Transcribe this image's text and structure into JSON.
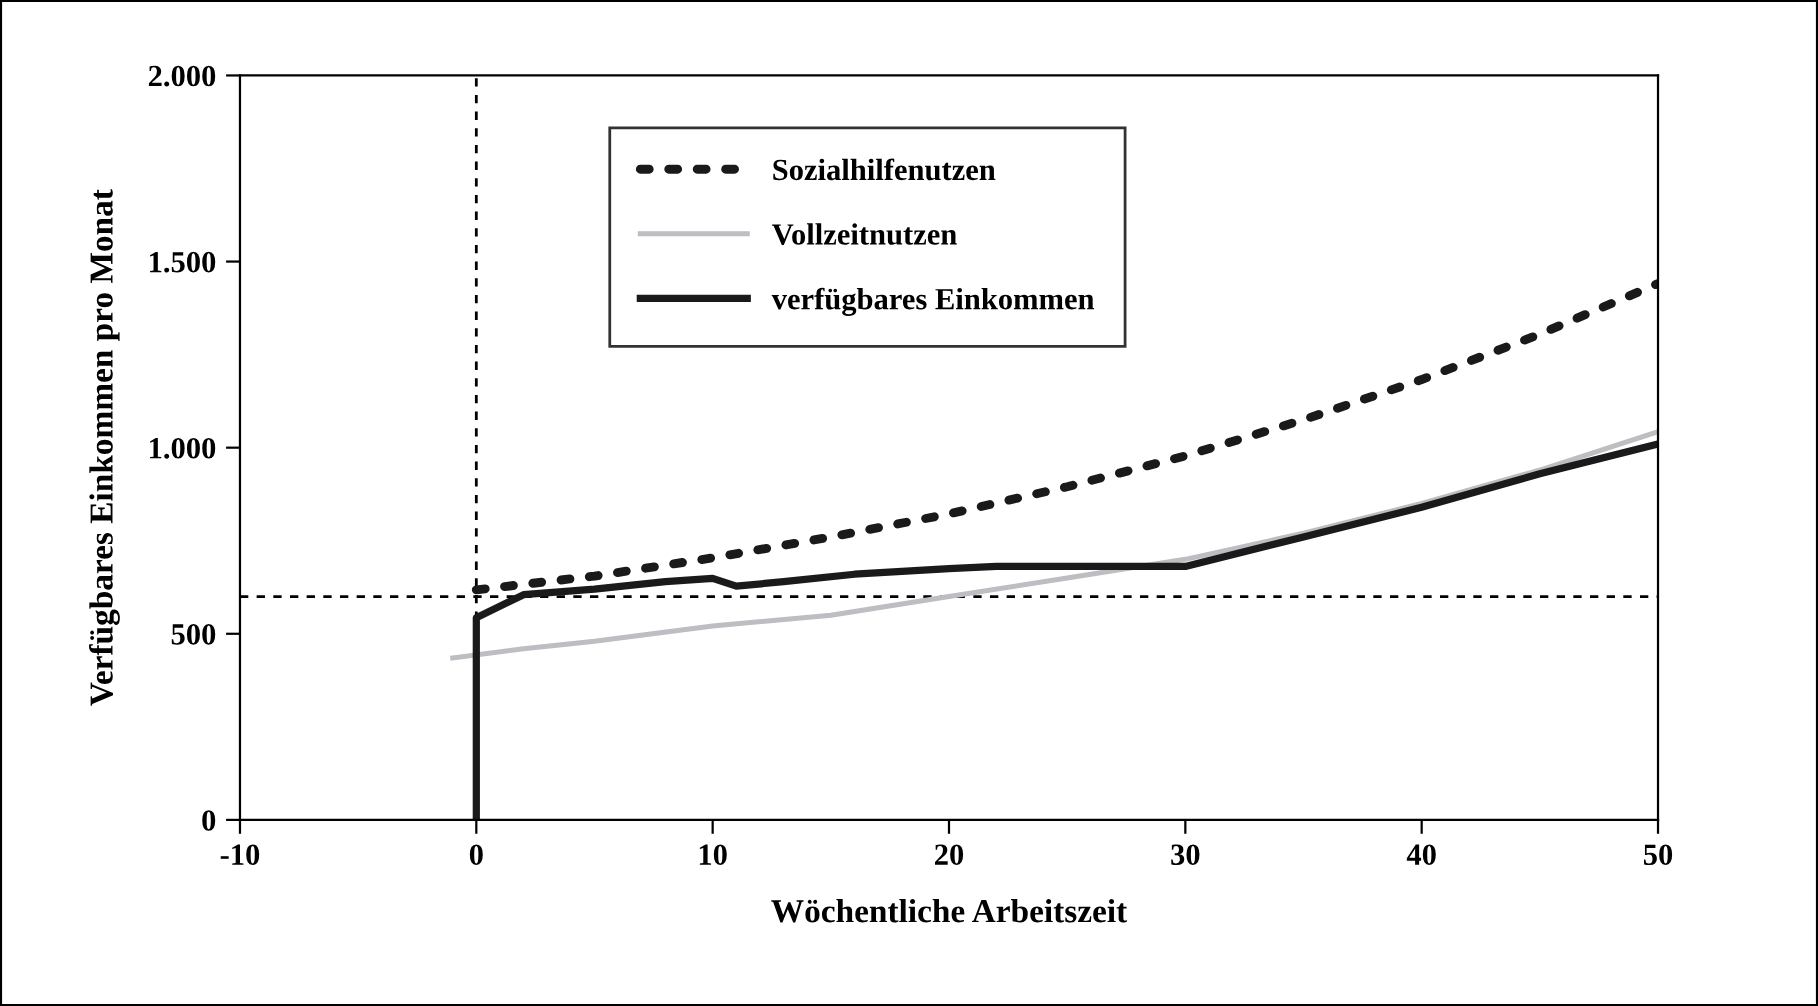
{
  "chart_data": {
    "type": "line",
    "xlabel": "Wöchentliche Arbeitszeit",
    "ylabel": "Verfügbares Einkommen pro Monat",
    "xlim": [
      -10,
      50
    ],
    "xticks": [
      -10,
      0,
      10,
      20,
      30,
      40,
      50
    ],
    "ylim": [
      0,
      2000
    ],
    "yticks": [
      0,
      {
        "value": 500,
        "label": "500"
      },
      {
        "value": 1000,
        "label": "1.000"
      },
      {
        "value": 1500,
        "label": "1.500"
      },
      {
        "value": 2000,
        "label": "2.000"
      }
    ],
    "grid": false,
    "legend": "top left",
    "series": [
      {
        "name": "Sozialhilfenutzen",
        "color": "#1a1a1a",
        "line_style": "dotted",
        "x": [
          0,
          5,
          10,
          15,
          20,
          25,
          30,
          35,
          40,
          45,
          50
        ],
        "values": [
          618,
          655,
          704,
          760,
          822,
          895,
          978,
          1075,
          1183,
          1305,
          1441
        ]
      },
      {
        "name": "Vollzeitnutzen",
        "color": "#bdbdc2",
        "line_style": "solid",
        "x": [
          -1,
          2,
          5,
          10,
          15,
          20,
          25,
          30,
          35,
          40,
          45,
          50
        ],
        "values": [
          435,
          460,
          480,
          521,
          550,
          600,
          650,
          700,
          770,
          850,
          940,
          1043
        ]
      },
      {
        "name": "verfügbares Einkommen",
        "color": "#1a1a1a",
        "line_style": "solid",
        "x": [
          0,
          0,
          2,
          5,
          8,
          10,
          11,
          13,
          16,
          20,
          22,
          30,
          35,
          40,
          45,
          50
        ],
        "values": [
          0,
          543,
          605,
          620,
          640,
          649,
          628,
          640,
          660,
          675,
          681,
          681,
          760,
          840,
          930,
          1010
        ]
      }
    ],
    "ref_lines": [
      {
        "axis": "x",
        "value": 0,
        "color": "#000000",
        "line_style": "dotted"
      },
      {
        "axis": "y",
        "value": 600,
        "color": "#000000",
        "line_style": "dotted"
      }
    ]
  }
}
